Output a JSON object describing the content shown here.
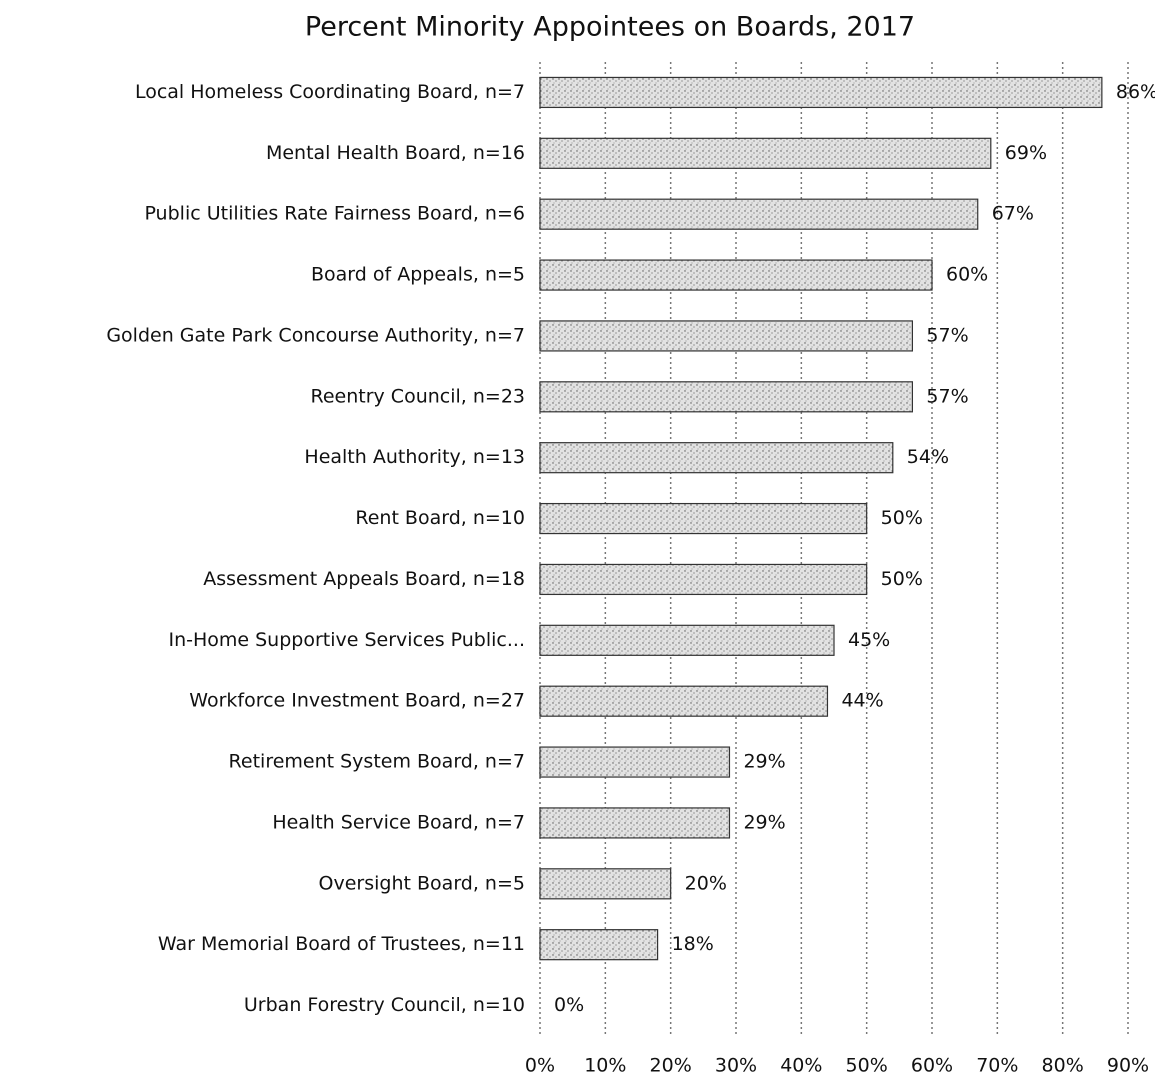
{
  "chart_data": {
    "type": "bar",
    "orientation": "horizontal",
    "title": "Percent Minority Appointees on Boards, 2017",
    "categories": [
      "Local Homeless Coordinating Board, n=7",
      "Mental Health Board, n=16",
      "Public Utilities Rate Fairness Board, n=6",
      "Board of Appeals, n=5",
      "Golden Gate Park Concourse Authority, n=7",
      "Reentry Council, n=23",
      "Health Authority, n=13",
      "Rent Board, n=10",
      "Assessment Appeals Board, n=18",
      "In-Home Supportive Services Public...",
      "Workforce Investment Board, n=27",
      "Retirement System Board, n=7",
      "Health Service Board, n=7",
      "Oversight Board, n=5",
      "War Memorial Board of Trustees, n=11",
      "Urban Forestry Council, n=10"
    ],
    "values": [
      86,
      69,
      67,
      60,
      57,
      57,
      54,
      50,
      50,
      45,
      44,
      29,
      29,
      20,
      18,
      0
    ],
    "value_labels": [
      "86%",
      "69%",
      "67%",
      "60%",
      "57%",
      "57%",
      "54%",
      "50%",
      "50%",
      "45%",
      "44%",
      "29%",
      "29%",
      "20%",
      "18%",
      "0%"
    ],
    "color": "#d4d4d4",
    "xlim": [
      0,
      90
    ],
    "xticks": [
      {
        "value": 0,
        "label": "0%"
      },
      {
        "value": 10,
        "label": "10%"
      },
      {
        "value": 20,
        "label": "20%"
      },
      {
        "value": 30,
        "label": "30%"
      },
      {
        "value": 40,
        "label": "40%"
      },
      {
        "value": 50,
        "label": "50%"
      },
      {
        "value": 60,
        "label": "60%"
      },
      {
        "value": 70,
        "label": "70%"
      },
      {
        "value": 80,
        "label": "80%"
      },
      {
        "value": 90,
        "label": "90%"
      }
    ],
    "grid": true
  }
}
